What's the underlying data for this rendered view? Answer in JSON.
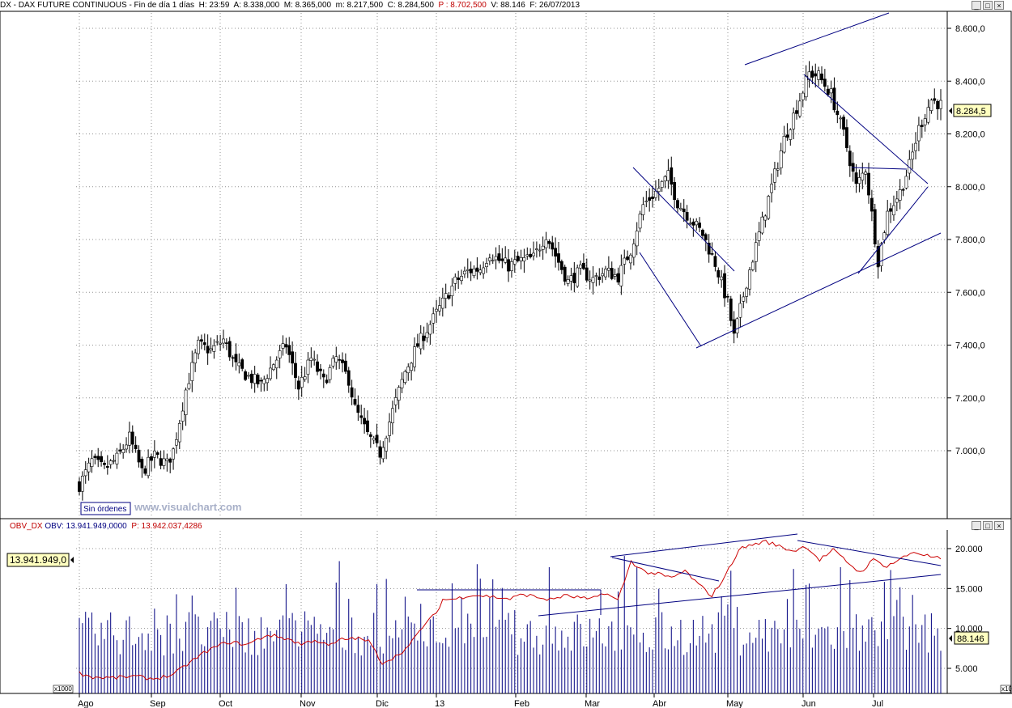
{
  "header": {
    "symbol": "DX - DAX FUTURE CONTINUOUS - Fin de día 1 días",
    "h": "H: 23:59",
    "a": "A: 8.338,000",
    "m": "M: 8.365,000",
    "mn": "m: 8.217,500",
    "c": "C: 8.284,500",
    "p": "P : 8.702,500",
    "v": "V: 88.146",
    "f": "F: 26/07/2013"
  },
  "window_controls": [
    "_",
    "□",
    "×"
  ],
  "sub_window_controls": [
    "_",
    "□",
    "×"
  ],
  "sin_ordenes": "Sin órdenes",
  "watermark": "www.visualchart.com",
  "price_marker": "8.284,5",
  "obv_header": {
    "name": "OBV_DX",
    "obv": "OBV: 13.941.949,0000",
    "p": "P: 13.942.037,4286"
  },
  "obv_marker": "13.941.949,0",
  "volume_marker": "88.146",
  "x1000_label": "x1000",
  "x10_label": "x10",
  "colors": {
    "candle": "#000000",
    "trendline": "#000080",
    "obv": "#cc0000",
    "volume": "#000080",
    "marker_bg": "#ffffc0"
  },
  "chart_data": [
    {
      "type": "candlestick",
      "series_description": "DAX future daily candles",
      "ylim": [
        6800,
        8700
      ],
      "yticks": [
        "8.600,0",
        "8.400,0",
        "8.200,0",
        "8.000,0",
        "7.800,0",
        "7.600,0",
        "7.400,0",
        "7.200,0",
        "7.000,0"
      ],
      "ytick_values": [
        8600,
        8400,
        8200,
        8000,
        7800,
        7600,
        7400,
        7200,
        7000
      ],
      "xticks": [
        "Ago",
        "Sep",
        "Oct",
        "Nov",
        "Dic",
        "13",
        "Feb",
        "Mar",
        "Abr",
        "May",
        "Jun",
        "Jul"
      ],
      "x_range_days": 250,
      "anchors": [
        [
          0,
          6870
        ],
        [
          4,
          6960
        ],
        [
          8,
          6930
        ],
        [
          12,
          6970
        ],
        [
          16,
          7050
        ],
        [
          20,
          6920
        ],
        [
          24,
          6980
        ],
        [
          28,
          6950
        ],
        [
          30,
          7000
        ],
        [
          34,
          7230
        ],
        [
          38,
          7400
        ],
        [
          42,
          7380
        ],
        [
          46,
          7420
        ],
        [
          50,
          7320
        ],
        [
          54,
          7280
        ],
        [
          58,
          7250
        ],
        [
          62,
          7330
        ],
        [
          66,
          7400
        ],
        [
          70,
          7240
        ],
        [
          74,
          7350
        ],
        [
          78,
          7260
        ],
        [
          82,
          7350
        ],
        [
          86,
          7270
        ],
        [
          88,
          7160
        ],
        [
          92,
          7060
        ],
        [
          96,
          6990
        ],
        [
          100,
          7150
        ],
        [
          104,
          7300
        ],
        [
          108,
          7400
        ],
        [
          112,
          7480
        ],
        [
          116,
          7560
        ],
        [
          120,
          7640
        ],
        [
          124,
          7680
        ],
        [
          128,
          7690
        ],
        [
          131,
          7750
        ],
        [
          134,
          7720
        ],
        [
          137,
          7700
        ],
        [
          141,
          7720
        ],
        [
          145,
          7730
        ],
        [
          149,
          7820
        ],
        [
          152,
          7740
        ],
        [
          156,
          7640
        ],
        [
          160,
          7680
        ],
        [
          164,
          7650
        ],
        [
          168,
          7680
        ],
        [
          172,
          7660
        ],
        [
          176,
          7760
        ],
        [
          180,
          7930
        ],
        [
          184,
          7980
        ],
        [
          188,
          8040
        ],
        [
          191,
          7940
        ],
        [
          195,
          7880
        ],
        [
          199,
          7820
        ],
        [
          203,
          7710
        ],
        [
          207,
          7560
        ],
        [
          209,
          7430
        ],
        [
          213,
          7640
        ],
        [
          217,
          7820
        ],
        [
          221,
          8000
        ],
        [
          225,
          8180
        ],
        [
          229,
          8300
        ],
        [
          233,
          8430
        ],
        [
          236,
          8420
        ],
        [
          240,
          8350
        ],
        [
          244,
          8200
        ],
        [
          248,
          8000
        ],
        [
          251,
          8070
        ],
        [
          255,
          7720
        ],
        [
          258,
          7900
        ],
        [
          262,
          7980
        ],
        [
          265,
          8080
        ],
        [
          268,
          8220
        ],
        [
          272,
          8330
        ],
        [
          275,
          8310
        ]
      ]
    },
    {
      "type": "line",
      "series_description": "OBV",
      "ylim": [
        2000,
        22000
      ],
      "yticks": [
        "20.000",
        "15.000",
        "10.000",
        "5.000"
      ],
      "ytick_values": [
        20000,
        15000,
        10000,
        5000
      ],
      "anchors": [
        [
          0,
          4400
        ],
        [
          4,
          3900
        ],
        [
          10,
          3800
        ],
        [
          16,
          4000
        ],
        [
          22,
          3700
        ],
        [
          28,
          4200
        ],
        [
          32,
          5500
        ],
        [
          38,
          7200
        ],
        [
          44,
          8300
        ],
        [
          50,
          8000
        ],
        [
          56,
          9200
        ],
        [
          62,
          8700
        ],
        [
          66,
          8000
        ],
        [
          70,
          8600
        ],
        [
          74,
          7800
        ],
        [
          78,
          8600
        ],
        [
          82,
          8800
        ],
        [
          86,
          8400
        ],
        [
          90,
          5700
        ],
        [
          94,
          6500
        ],
        [
          98,
          7800
        ],
        [
          102,
          10200
        ],
        [
          106,
          11900
        ],
        [
          108,
          13600
        ],
        [
          112,
          13700
        ],
        [
          116,
          14200
        ],
        [
          120,
          14100
        ],
        [
          124,
          13900
        ],
        [
          128,
          13700
        ],
        [
          132,
          14300
        ],
        [
          136,
          13900
        ],
        [
          140,
          13600
        ],
        [
          144,
          14100
        ],
        [
          148,
          13900
        ],
        [
          152,
          13600
        ],
        [
          156,
          14500
        ],
        [
          160,
          13500
        ],
        [
          164,
          18400
        ],
        [
          168,
          17100
        ],
        [
          172,
          16800
        ],
        [
          176,
          16300
        ],
        [
          180,
          17200
        ],
        [
          184,
          15500
        ],
        [
          188,
          14100
        ],
        [
          192,
          16600
        ],
        [
          196,
          19900
        ],
        [
          200,
          20500
        ],
        [
          204,
          20900
        ],
        [
          208,
          20300
        ],
        [
          212,
          19700
        ],
        [
          216,
          20300
        ],
        [
          220,
          18600
        ],
        [
          224,
          19800
        ],
        [
          228,
          18400
        ],
        [
          232,
          17000
        ],
        [
          236,
          18600
        ],
        [
          240,
          17800
        ],
        [
          244,
          18700
        ],
        [
          248,
          19600
        ],
        [
          252,
          19100
        ],
        [
          256,
          18700
        ]
      ]
    },
    {
      "type": "bar",
      "series_description": "daily volume (x1000)",
      "ylim": [
        0,
        220
      ]
    }
  ]
}
